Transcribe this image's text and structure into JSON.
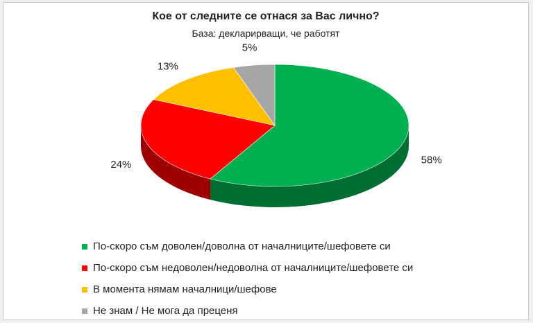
{
  "chart_data": {
    "type": "pie",
    "title": "Кое от следните се отнася за Вас лично?",
    "subtitle": "База: декларирващи, че работят",
    "three_d": true,
    "slices": [
      {
        "label": "По-скоро съм доволен/доволна от началниците/шефовете си",
        "value": 58,
        "value_label": "58%",
        "color": "#00b050"
      },
      {
        "label": "По-скоро съм недоволен/недоволна от началниците/шефовете си",
        "value": 24,
        "value_label": "24%",
        "color": "#ff0000"
      },
      {
        "label": "В момента нямам началници/шефове",
        "value": 13,
        "value_label": "13%",
        "color": "#ffc000"
      },
      {
        "label": "Не знам / Не мога да преценя",
        "value": 5,
        "value_label": "5%",
        "color": "#a6a6a6"
      }
    ],
    "legend_position": "bottom-left"
  }
}
